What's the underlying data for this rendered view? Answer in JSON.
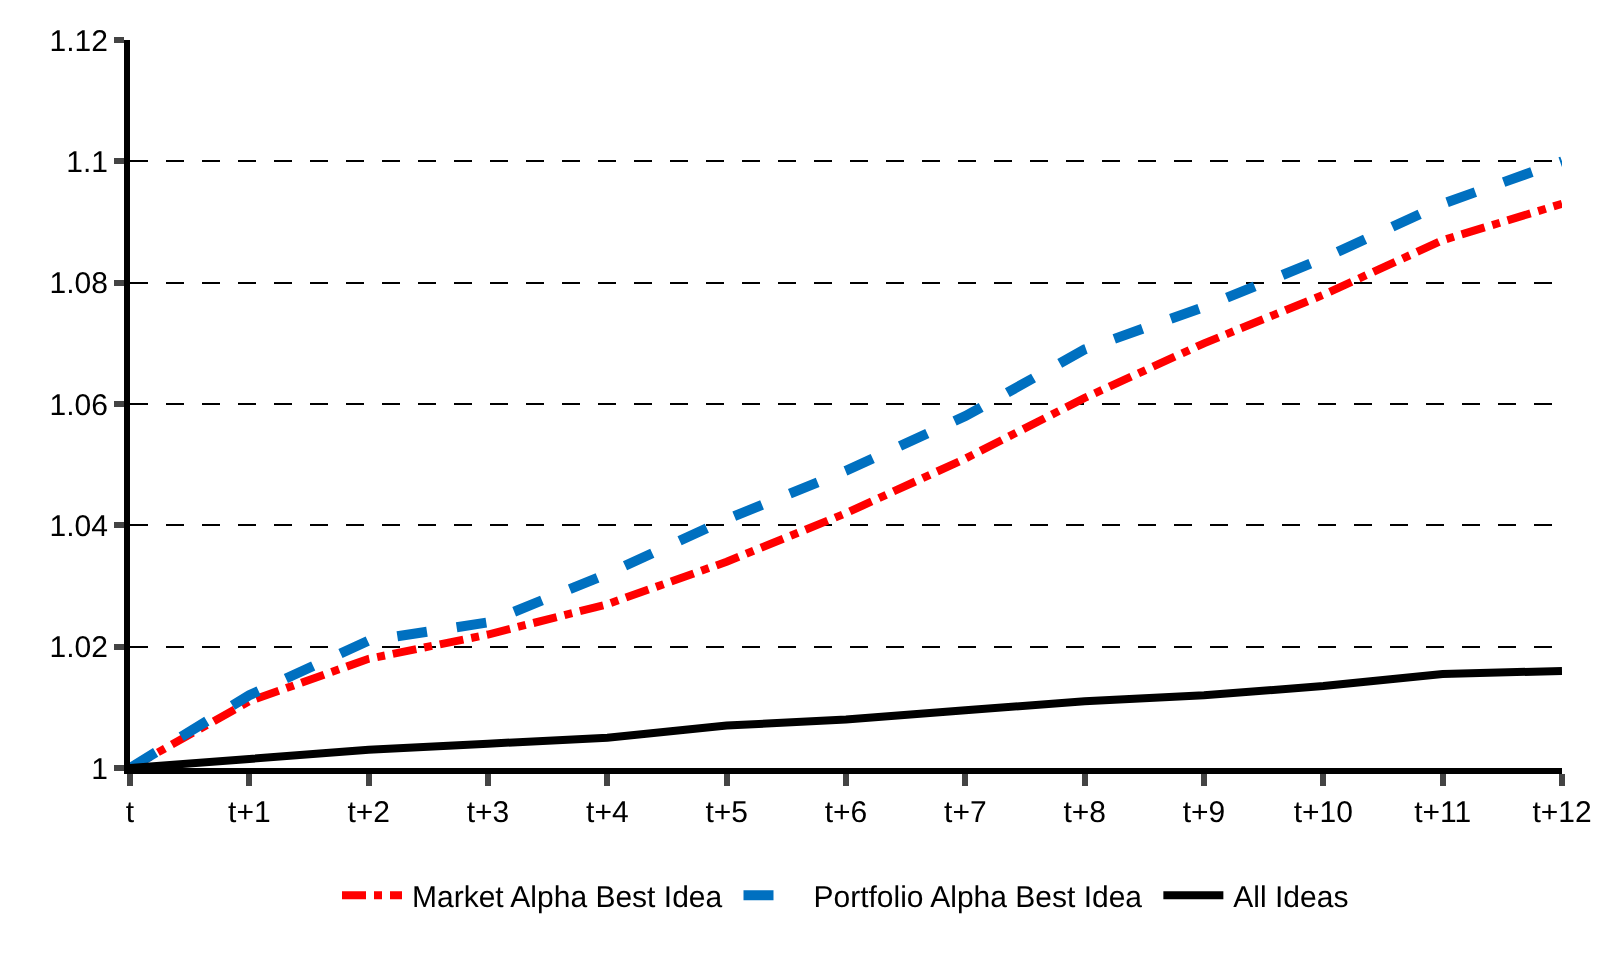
{
  "chart_data": {
    "type": "line",
    "categories": [
      "t",
      "t+1",
      "t+2",
      "t+3",
      "t+4",
      "t+5",
      "t+6",
      "t+7",
      "t+8",
      "t+9",
      "t+10",
      "t+11",
      "t+12"
    ],
    "series": [
      {
        "name": "Market Alpha Best Idea",
        "color": "#ff0000",
        "line_style": "dashdot",
        "values": [
          1.0,
          1.011,
          1.018,
          1.022,
          1.027,
          1.034,
          1.042,
          1.051,
          1.061,
          1.07,
          1.078,
          1.087,
          1.093
        ]
      },
      {
        "name": "Portfolio Alpha Best Idea",
        "color": "#0070c0",
        "line_style": "dashed",
        "values": [
          1.0,
          1.012,
          1.021,
          1.024,
          1.032,
          1.041,
          1.049,
          1.058,
          1.069,
          1.076,
          1.084,
          1.093,
          1.1
        ]
      },
      {
        "name": "All Ideas",
        "color": "#000000",
        "line_style": "solid",
        "values": [
          1.0,
          1.0015,
          1.003,
          1.004,
          1.005,
          1.007,
          1.008,
          1.0095,
          1.011,
          1.012,
          1.0135,
          1.0155,
          1.016
        ]
      }
    ],
    "ylim": [
      1,
      1.12
    ],
    "yticks": [
      1,
      1.02,
      1.04,
      1.06,
      1.08,
      1.1,
      1.12
    ],
    "grid": "y",
    "legend": "bottom",
    "marker": "none"
  }
}
